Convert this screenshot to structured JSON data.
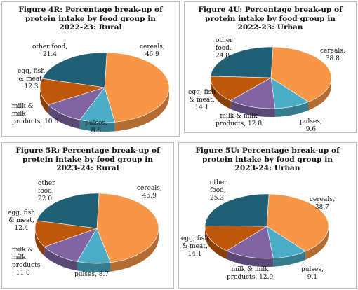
{
  "colors": {
    "cereals": "#F79646",
    "pulses": "#4BACC6",
    "milk_products": "#8064A2",
    "egg_fish_meat": "#C0580C",
    "other_food": "#215F74"
  },
  "chart_data": [
    {
      "type": "pie",
      "title_lines": [
        "Figure 4R: Percentage break-up of",
        "protein intake by food group in",
        "2022-23: Rural"
      ],
      "slices": [
        {
          "key": "cereals",
          "name_lines": [
            "cereals,"
          ],
          "value": 46.9
        },
        {
          "key": "pulses",
          "name_lines": [
            "pulses,"
          ],
          "value": 8.8
        },
        {
          "key": "milk_products",
          "name_lines": [
            "milk &",
            "milk",
            "products"
          ],
          "value": 10.6
        },
        {
          "key": "egg_fish_meat",
          "name_lines": [
            "egg, fish",
            "& meat,"
          ],
          "value": 12.3
        },
        {
          "key": "other_food",
          "name_lines": [
            "other food,"
          ],
          "value": 21.4
        }
      ]
    },
    {
      "type": "pie",
      "title_lines": [
        "Figure 4U: Percentage break-up of",
        "protein intake by food group in",
        "2022-23: Urban"
      ],
      "slices": [
        {
          "key": "cereals",
          "name_lines": [
            "cereals,"
          ],
          "value": 38.8
        },
        {
          "key": "pulses",
          "name_lines": [
            "pulses,"
          ],
          "value": 9.6
        },
        {
          "key": "milk_products",
          "name_lines": [
            "milk & milk",
            "products, 12.8"
          ],
          "value": 12.8
        },
        {
          "key": "egg_fish_meat",
          "name_lines": [
            "egg, fish",
            "& meat,"
          ],
          "value": 14.1
        },
        {
          "key": "other_food",
          "name_lines": [
            "other",
            "food,"
          ],
          "value": 24.8
        }
      ]
    },
    {
      "type": "pie",
      "title_lines": [
        "Figure 5R: Percentage break-up of",
        "protein intake by food group in",
        "2023-24: Rural"
      ],
      "slices": [
        {
          "key": "cereals",
          "name_lines": [
            "cereals,"
          ],
          "value": 45.9
        },
        {
          "key": "pulses",
          "name_lines": [
            "pulses, 8.7"
          ],
          "value": 8.7
        },
        {
          "key": "milk_products",
          "name_lines": [
            "milk &",
            "milk",
            "products"
          ],
          "value": 11.0
        },
        {
          "key": "egg_fish_meat",
          "name_lines": [
            "egg, fish",
            "& meat,"
          ],
          "value": 12.4
        },
        {
          "key": "other_food",
          "name_lines": [
            "other",
            "food,"
          ],
          "value": 22.0
        }
      ]
    },
    {
      "type": "pie",
      "title_lines": [
        "Figure 5U: Percentage break-up of",
        "protein intake by food group in",
        "2023-24: Urban"
      ],
      "slices": [
        {
          "key": "cereals",
          "name_lines": [
            "cereals,"
          ],
          "value": 38.7
        },
        {
          "key": "pulses",
          "name_lines": [
            "pulses,"
          ],
          "value": 9.1
        },
        {
          "key": "milk_products",
          "name_lines": [
            "milk & milk",
            "products,"
          ],
          "value": 12.9
        },
        {
          "key": "egg_fish_meat",
          "name_lines": [
            "egg, fish",
            "& meat,"
          ],
          "value": 14.1
        },
        {
          "key": "other_food",
          "name_lines": [
            "other",
            "food,"
          ],
          "value": 25.3
        }
      ]
    }
  ]
}
